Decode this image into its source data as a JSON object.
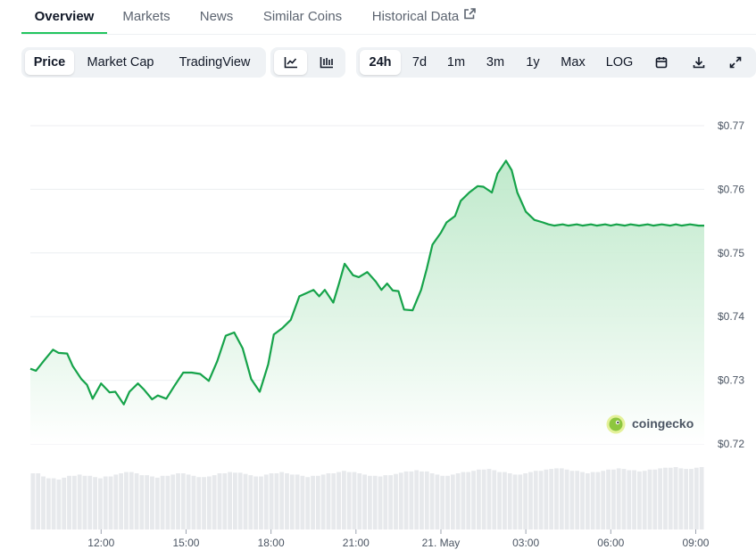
{
  "tabs": [
    {
      "label": "Overview",
      "active": true
    },
    {
      "label": "Markets"
    },
    {
      "label": "News"
    },
    {
      "label": "Similar Coins"
    },
    {
      "label": "Historical Data",
      "icon": "external-link-icon"
    }
  ],
  "toolbar": {
    "data_type": [
      "Price",
      "Market Cap",
      "TradingView"
    ],
    "chart_styles": [
      {
        "icon": "line-chart-icon",
        "selected": true
      },
      {
        "icon": "candlestick-chart-icon"
      }
    ],
    "ranges": [
      "24h",
      "7d",
      "1m",
      "3m",
      "1y",
      "Max",
      "LOG"
    ],
    "selected_range": "24h",
    "actions": [
      {
        "icon": "calendar-icon"
      },
      {
        "icon": "download-icon"
      },
      {
        "icon": "fullscreen-icon"
      }
    ]
  },
  "brand": {
    "name": "coingecko",
    "logo_icon": "gecko-logo-icon"
  },
  "colors": {
    "line": "#16a34a",
    "area_top": "#b9e7c6",
    "accent": "#22c55e",
    "volume": "#e7e9ec"
  },
  "chart_data": {
    "type": "area",
    "x_labels": [
      "12:00",
      "15:00",
      "18:00",
      "21:00",
      "21. May",
      "03:00",
      "06:00",
      "09:00"
    ],
    "y_ticks": [
      "$0.72",
      "$0.73",
      "$0.74",
      "$0.75",
      "$0.76",
      "$0.77"
    ],
    "ylim": [
      0.72,
      0.77
    ],
    "x_hours": [
      9.5,
      9.7,
      10.0,
      10.3,
      10.5,
      10.8,
      11.0,
      11.3,
      11.5,
      11.7,
      12.0,
      12.3,
      12.5,
      12.8,
      13.0,
      13.3,
      13.5,
      13.8,
      14.0,
      14.3,
      14.6,
      14.9,
      15.2,
      15.5,
      15.8,
      16.1,
      16.4,
      16.7,
      17.0,
      17.3,
      17.6,
      17.9,
      18.1,
      18.4,
      18.7,
      19.0,
      19.3,
      19.5,
      19.7,
      19.9,
      20.2,
      20.4,
      20.6,
      20.9,
      21.1,
      21.4,
      21.7,
      21.9,
      22.1,
      22.3,
      22.5,
      22.7,
      23.0,
      23.3,
      23.5,
      23.7,
      24.0,
      24.2,
      24.5,
      24.7,
      25.0,
      25.3,
      25.5,
      25.8,
      26.0,
      26.3,
      26.5,
      26.7,
      27.0,
      27.3,
      27.6,
      27.8,
      28.0,
      28.3,
      28.5,
      28.8,
      29.0,
      29.3,
      29.5,
      29.8,
      30.0,
      30.2,
      30.5,
      30.7,
      31.0,
      31.3,
      31.5,
      31.8,
      32.1,
      32.3,
      32.5,
      32.8,
      33.1,
      33.3
    ],
    "y_price": [
      0.7318,
      0.7315,
      0.7332,
      0.7348,
      0.7343,
      0.7342,
      0.7322,
      0.7302,
      0.7293,
      0.7271,
      0.7295,
      0.7281,
      0.7282,
      0.7262,
      0.7282,
      0.7295,
      0.7286,
      0.727,
      0.7276,
      0.7271,
      0.7292,
      0.7312,
      0.7312,
      0.731,
      0.7299,
      0.733,
      0.737,
      0.7375,
      0.735,
      0.7302,
      0.7282,
      0.7325,
      0.7372,
      0.7382,
      0.7395,
      0.7432,
      0.7438,
      0.7442,
      0.7432,
      0.7442,
      0.7422,
      0.7452,
      0.7483,
      0.7465,
      0.7462,
      0.747,
      0.7455,
      0.7442,
      0.7452,
      0.7441,
      0.744,
      0.7411,
      0.741,
      0.7442,
      0.7475,
      0.7513,
      0.7532,
      0.7548,
      0.7558,
      0.7582,
      0.7595,
      0.7605,
      0.7604,
      0.7595,
      0.7625,
      0.7645,
      0.763,
      0.7595,
      0.7565,
      0.7552,
      0.7548,
      0.7545,
      0.7543,
      0.7545,
      0.7543,
      0.7545,
      0.7543,
      0.7545,
      0.7543,
      0.7545,
      0.7543,
      0.7545,
      0.7543,
      0.7545,
      0.7543,
      0.7545,
      0.7543,
      0.7545,
      0.7543,
      0.7545,
      0.7543,
      0.7545,
      0.7543,
      0.7543
    ],
    "volume": [
      0.9,
      0.85,
      0.82,
      0.8,
      0.83,
      0.86,
      0.88,
      0.86,
      0.84,
      0.82,
      0.85,
      0.88,
      0.9,
      0.92,
      0.9,
      0.87,
      0.85,
      0.83,
      0.86,
      0.88,
      0.9,
      0.88,
      0.86,
      0.84,
      0.85,
      0.87,
      0.9,
      0.92,
      0.91,
      0.89,
      0.87,
      0.85,
      0.88,
      0.9,
      0.92,
      0.9,
      0.88,
      0.86,
      0.84,
      0.86,
      0.88,
      0.9,
      0.92,
      0.94,
      0.92,
      0.9,
      0.88,
      0.86,
      0.85,
      0.87,
      0.89,
      0.91,
      0.93,
      0.95,
      0.93,
      0.9,
      0.88,
      0.86,
      0.88,
      0.9,
      0.92,
      0.94,
      0.96,
      0.97,
      0.95,
      0.92,
      0.9,
      0.88,
      0.9,
      0.92,
      0.94,
      0.96,
      0.97,
      0.98,
      0.96,
      0.94,
      0.92,
      0.9,
      0.92,
      0.94,
      0.96,
      0.98,
      0.97,
      0.95,
      0.93,
      0.94,
      0.96,
      0.98,
      0.99,
      1.0,
      0.98,
      0.97,
      0.99,
      1.0
    ],
    "grid": true,
    "legend": "none"
  }
}
